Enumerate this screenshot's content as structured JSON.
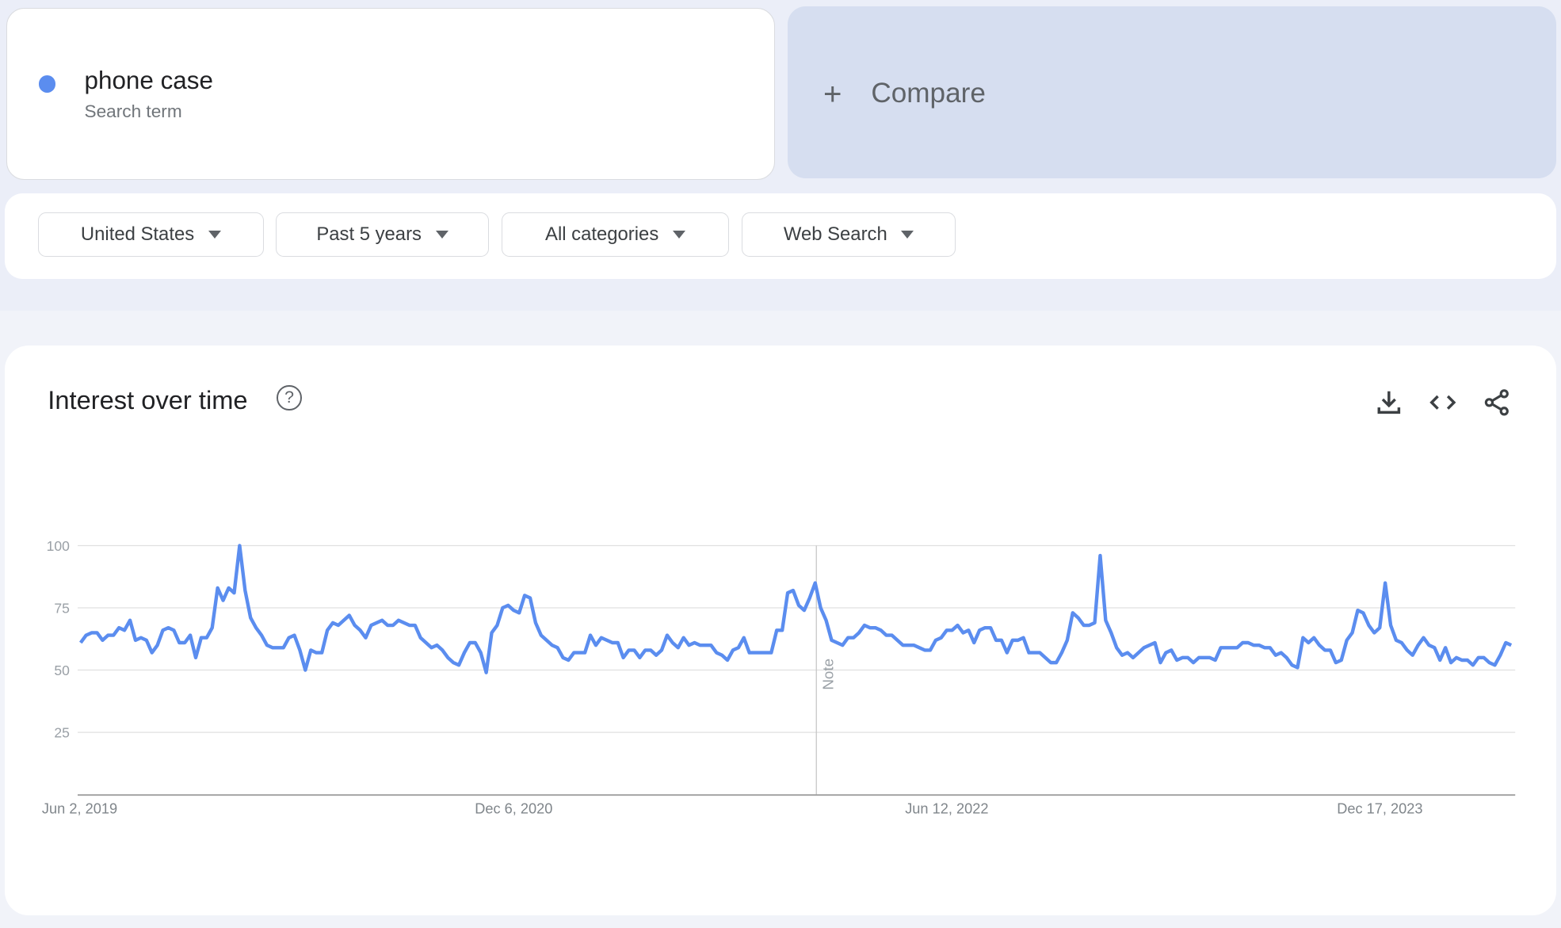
{
  "term": {
    "name": "phone case",
    "type": "Search term",
    "color": "#5b8def"
  },
  "compare": {
    "icon": "plus-icon",
    "label": "Compare"
  },
  "filters": [
    {
      "label": "United States"
    },
    {
      "label": "Past 5 years"
    },
    {
      "label": "All categories"
    },
    {
      "label": "Web Search"
    }
  ],
  "chart_card": {
    "title": "Interest over time",
    "help_icon": "?",
    "actions": [
      "download-icon",
      "embed-code-icon",
      "share-icon"
    ]
  },
  "chart_data": {
    "type": "line",
    "title": "Interest over time",
    "xlabel": "",
    "ylabel": "",
    "ylim": [
      0,
      100
    ],
    "yticks": [
      25,
      50,
      75,
      100
    ],
    "xtick_labels": [
      "Jun 2, 2019",
      "Dec 6, 2020",
      "Jun 12, 2022",
      "Dec 17, 2023"
    ],
    "x_start": "Jun 2, 2019",
    "x_interval": "weekly",
    "grid": true,
    "annotation": {
      "label": "Note"
    },
    "series": [
      {
        "color": "#5b8def",
        "values": [
          61,
          64,
          65,
          65,
          62,
          64,
          64,
          67,
          66,
          70,
          62,
          63,
          62,
          57,
          60,
          66,
          67,
          66,
          61,
          61,
          64,
          55,
          63,
          63,
          67,
          83,
          78,
          83,
          81,
          100,
          82,
          71,
          67,
          64,
          60,
          59,
          59,
          59,
          63,
          64,
          58,
          50,
          58,
          57,
          57,
          66,
          69,
          68,
          70,
          72,
          68,
          66,
          63,
          68,
          69,
          70,
          68,
          68,
          70,
          69,
          68,
          68,
          63,
          61,
          59,
          60,
          58,
          55,
          53,
          52,
          57,
          61,
          61,
          57,
          49,
          65,
          68,
          75,
          76,
          74,
          73,
          80,
          79,
          69,
          64,
          62,
          60,
          59,
          55,
          54,
          57,
          57,
          57,
          64,
          60,
          63,
          62,
          61,
          61,
          55,
          58,
          58,
          55,
          58,
          58,
          56,
          58,
          64,
          61,
          59,
          63,
          60,
          61,
          60,
          60,
          60,
          57,
          56,
          54,
          58,
          59,
          63,
          57,
          57,
          57,
          57,
          57,
          66,
          66,
          81,
          82,
          76,
          74,
          79,
          85,
          75,
          70,
          62,
          61,
          60,
          63,
          63,
          65,
          68,
          67,
          67,
          66,
          64,
          64,
          62,
          60,
          60,
          60,
          59,
          58,
          58,
          62,
          63,
          66,
          66,
          68,
          65,
          66,
          61,
          66,
          67,
          67,
          62,
          62,
          57,
          62,
          62,
          63,
          57,
          57,
          57,
          55,
          53,
          53,
          57,
          62,
          73,
          71,
          68,
          68,
          69,
          96,
          70,
          65,
          59,
          56,
          57,
          55,
          57,
          59,
          60,
          61,
          53,
          57,
          58,
          54,
          55,
          55,
          53,
          55,
          55,
          55,
          54,
          59,
          59,
          59,
          59,
          61,
          61,
          60,
          60,
          59,
          59,
          56,
          57,
          55,
          52,
          51,
          63,
          61,
          63,
          60,
          58,
          58,
          53,
          54,
          62,
          65,
          74,
          73,
          68,
          65,
          67,
          85,
          68,
          62,
          61,
          58,
          56,
          60,
          63,
          60,
          59,
          54,
          59,
          53,
          55,
          54,
          54,
          52,
          55,
          55,
          53,
          52,
          56,
          61,
          60
        ]
      }
    ]
  }
}
